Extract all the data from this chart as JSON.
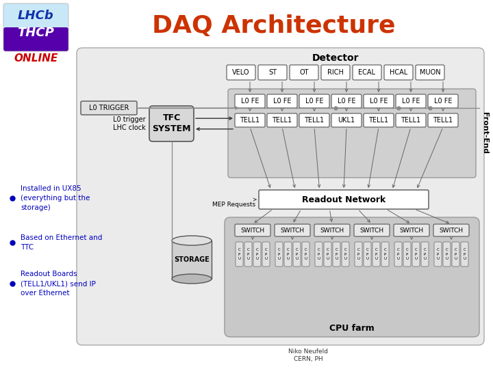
{
  "title": "DAQ Architecture",
  "title_color": "#CC3300",
  "title_fontsize": 26,
  "bg_color": "#FFFFFF",
  "bullet_color": "#0000BB",
  "bullet_items": [
    "Installed in UX85\n(everything but the\nstorage)",
    "Based on Ethernet and\nTTC",
    "Readout Boards\n(TELL1/UKL1) send IP\nover Ethernet"
  ],
  "detector_boxes": [
    "VELO",
    "ST",
    "OT",
    "RICH",
    "ECAL",
    "HCAL",
    "MUON"
  ],
  "lofe_boxes": [
    "L0 FE",
    "L0 FE",
    "L0 FE",
    "L0 FE",
    "L0 FE",
    "L0 FE",
    "L0 FE"
  ],
  "tell1_boxes": [
    "TELL1",
    "TELL1",
    "TELL1",
    "UKL1",
    "TELL1",
    "TELL1",
    "TELL1"
  ],
  "switch_boxes": [
    "SWITCH",
    "SWITCH",
    "SWITCH",
    "SWITCH",
    "SWITCH",
    "SWITCH"
  ],
  "cpu_label": "CPU farm",
  "readout_label": "Readout Network",
  "storage_label": "STORAGE",
  "detector_label": "Detector",
  "frontend_label": "Front-End",
  "tfc_label": "TFC\nSYSTEM",
  "l0trigger_label": "L0 TRIGGER",
  "clock_label": "L0 trigger\nLHC clock",
  "mep_label": "MEP Requests",
  "footer": "Niko Neufeld\nCERN, PH",
  "outer_bg": "#E8E8E8",
  "frontend_bg": "#CCCCCC",
  "cpu_bg": "#BBBBBB",
  "switch_bg": "#E0E0E0",
  "readout_bg": "#F0F0F0"
}
